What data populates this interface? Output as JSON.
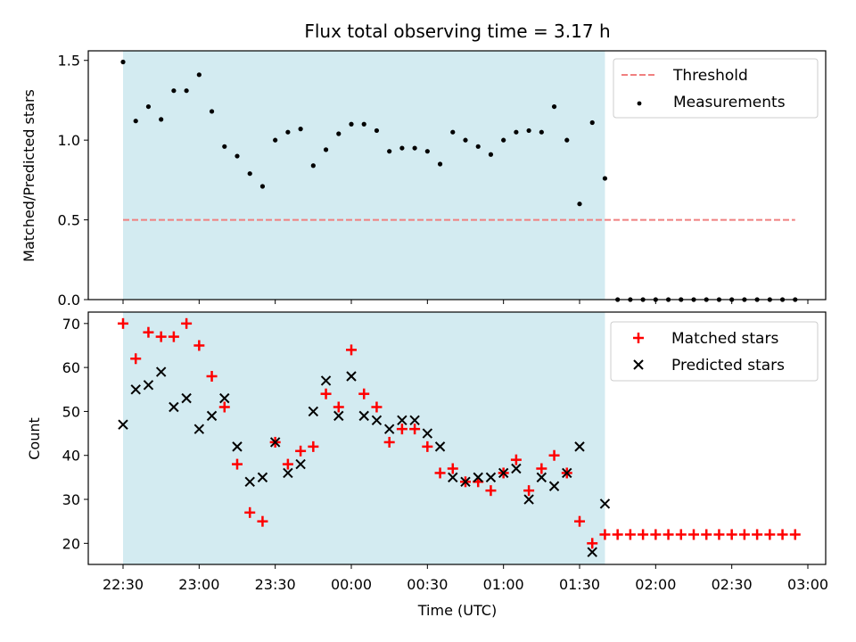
{
  "chart_data": [
    {
      "type": "scatter",
      "title": "Flux total observing time = 3.17 h",
      "xlabel": "",
      "ylabel": "Matched/Predicted stars",
      "ylim": [
        0,
        1.56
      ],
      "yticks": [
        "0.0",
        "0.5",
        "1.0",
        "1.5"
      ],
      "xlim": [
        "22:30",
        "03:00"
      ],
      "shaded_region": {
        "from": "22:30",
        "to": "01:40",
        "color": "#d3ebf1"
      },
      "legend_position": "top-right",
      "series": [
        {
          "name": "Threshold",
          "style": "dashed-line",
          "color": "#f08080",
          "x": [
            "22:30",
            "02:55"
          ],
          "y": [
            0.5,
            0.5
          ]
        },
        {
          "name": "Measurements",
          "style": "dot",
          "color": "#000000",
          "x": [
            "22:30",
            "22:35",
            "22:40",
            "22:45",
            "22:50",
            "22:55",
            "23:00",
            "23:05",
            "23:10",
            "23:15",
            "23:20",
            "23:25",
            "23:30",
            "23:35",
            "23:40",
            "23:45",
            "23:50",
            "23:55",
            "00:00",
            "00:05",
            "00:10",
            "00:15",
            "00:20",
            "00:25",
            "00:30",
            "00:35",
            "00:40",
            "00:45",
            "00:50",
            "00:55",
            "01:00",
            "01:05",
            "01:10",
            "01:15",
            "01:20",
            "01:25",
            "01:30",
            "01:35",
            "01:40",
            "01:45",
            "01:50",
            "01:55",
            "02:00",
            "02:05",
            "02:10",
            "02:15",
            "02:20",
            "02:25",
            "02:30",
            "02:35",
            "02:40",
            "02:45",
            "02:50",
            "02:55"
          ],
          "y": [
            1.49,
            1.12,
            1.21,
            1.13,
            1.31,
            1.31,
            1.41,
            1.18,
            0.96,
            0.9,
            0.79,
            0.71,
            1.0,
            1.05,
            1.07,
            0.84,
            0.94,
            1.04,
            1.1,
            1.1,
            1.06,
            0.93,
            0.95,
            0.95,
            0.93,
            0.85,
            1.05,
            1.0,
            0.96,
            0.91,
            1.0,
            1.05,
            1.06,
            1.05,
            1.21,
            1.0,
            0.6,
            1.11,
            0.76,
            0,
            0,
            0,
            0,
            0,
            0,
            0,
            0,
            0,
            0,
            0,
            0,
            0,
            0,
            0
          ]
        }
      ]
    },
    {
      "type": "scatter",
      "title": "",
      "xlabel": "Time (UTC)",
      "ylabel": "Count",
      "ylim": [
        15.2,
        72.6
      ],
      "yticks": [
        "20",
        "30",
        "40",
        "50",
        "60",
        "70"
      ],
      "xlim": [
        "22:30",
        "03:00"
      ],
      "xticks": [
        "22:30",
        "23:00",
        "23:30",
        "00:00",
        "00:30",
        "01:00",
        "01:30",
        "02:00",
        "02:30",
        "03:00"
      ],
      "shaded_region": {
        "from": "22:30",
        "to": "01:40",
        "color": "#d3ebf1"
      },
      "legend_position": "top-right",
      "series": [
        {
          "name": "Matched stars",
          "style": "plus",
          "color": "#ff0000",
          "x": [
            "22:30",
            "22:35",
            "22:40",
            "22:45",
            "22:50",
            "22:55",
            "23:00",
            "23:05",
            "23:10",
            "23:15",
            "23:20",
            "23:25",
            "23:30",
            "23:35",
            "23:40",
            "23:45",
            "23:50",
            "23:55",
            "00:00",
            "00:05",
            "00:10",
            "00:15",
            "00:20",
            "00:25",
            "00:30",
            "00:35",
            "00:40",
            "00:45",
            "00:50",
            "00:55",
            "01:00",
            "01:05",
            "01:10",
            "01:15",
            "01:20",
            "01:25",
            "01:30",
            "01:35",
            "01:40",
            "01:45",
            "01:50",
            "01:55",
            "02:00",
            "02:05",
            "02:10",
            "02:15",
            "02:20",
            "02:25",
            "02:30",
            "02:35",
            "02:40",
            "02:45",
            "02:50",
            "02:55"
          ],
          "y": [
            70,
            62,
            68,
            67,
            67,
            70,
            65,
            58,
            51,
            38,
            27,
            25,
            43,
            38,
            41,
            42,
            54,
            51,
            64,
            54,
            51,
            43,
            46,
            46,
            42,
            36,
            37,
            34,
            34,
            32,
            36,
            39,
            32,
            37,
            40,
            36,
            25,
            20,
            22,
            22,
            22,
            22,
            22,
            22,
            22,
            22,
            22,
            22,
            22,
            22,
            22,
            22,
            22,
            22
          ]
        },
        {
          "name": "Predicted stars",
          "style": "x",
          "color": "#000000",
          "x": [
            "22:30",
            "22:35",
            "22:40",
            "22:45",
            "22:50",
            "22:55",
            "23:00",
            "23:05",
            "23:10",
            "23:15",
            "23:20",
            "23:25",
            "23:30",
            "23:35",
            "23:40",
            "23:45",
            "23:50",
            "23:55",
            "00:00",
            "00:05",
            "00:10",
            "00:15",
            "00:20",
            "00:25",
            "00:30",
            "00:35",
            "00:40",
            "00:45",
            "00:50",
            "00:55",
            "01:00",
            "01:05",
            "01:10",
            "01:15",
            "01:20",
            "01:25",
            "01:30",
            "01:35",
            "01:40"
          ],
          "y": [
            47,
            55,
            56,
            59,
            51,
            53,
            46,
            49,
            53,
            42,
            34,
            35,
            43,
            36,
            38,
            50,
            57,
            49,
            58,
            49,
            48,
            46,
            48,
            48,
            45,
            42,
            35,
            34,
            35,
            35,
            36,
            37,
            30,
            35,
            33,
            36,
            42,
            18,
            29
          ]
        }
      ]
    }
  ]
}
